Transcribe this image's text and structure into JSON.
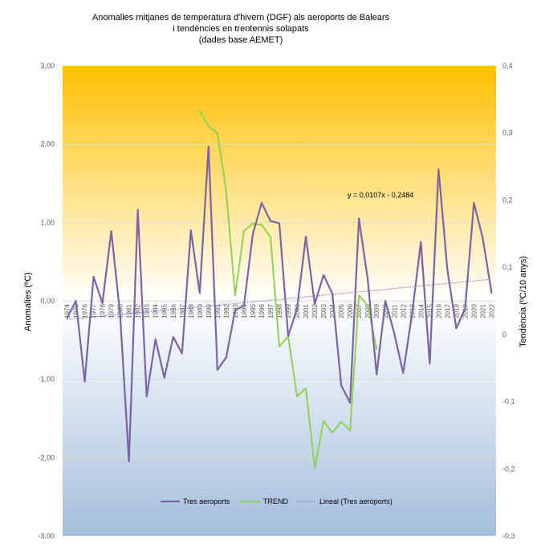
{
  "chart_data": {
    "type": "line",
    "title_lines": [
      "Anomalies mitjanes de temperatura d'hivern (DGF) als aeroports de Balears",
      "i tendències en trentennis solapats",
      "(dades base AEMET)"
    ],
    "ylabel_left": "Anomalies (ºC)",
    "ylabel_right": "Tendència (ºC/10 anys)",
    "y_left_range": [
      -3,
      3
    ],
    "y_left_ticks": [
      "3,00",
      "2,00",
      "1,00",
      "0,00",
      "-1,00",
      "-2,00",
      "-3,00"
    ],
    "y_right_range": [
      -0.3,
      0.4
    ],
    "y_right_ticks": [
      "0,4",
      "0,3",
      "0,2",
      "0,1",
      "0",
      "-0,1",
      "-0,2",
      "-0,3"
    ],
    "categories": [
      "1974",
      "1975",
      "1976",
      "1977",
      "1978",
      "1979",
      "1980",
      "1981",
      "1982",
      "1983",
      "1984",
      "1985",
      "1986",
      "1987",
      "1988",
      "1989",
      "1990",
      "1991",
      "1992",
      "1993",
      "1994",
      "1995",
      "1996",
      "1997",
      "1998",
      "1999",
      "2000",
      "2001",
      "2002",
      "2003",
      "2004",
      "2005",
      "2006",
      "2007",
      "2008",
      "2009",
      "2010",
      "2011",
      "2012",
      "2013",
      "2014",
      "2015",
      "2016",
      "2017",
      "2018",
      "2019",
      "2020",
      "2021",
      "2022"
    ],
    "series": [
      {
        "name": "Tres aeroports",
        "axis": "left",
        "color": "#7b64a6",
        "values": [
          -0.22,
          0.0,
          -1.03,
          0.31,
          -0.03,
          0.89,
          -0.17,
          -2.05,
          1.16,
          -1.22,
          -0.49,
          -0.98,
          -0.46,
          -0.67,
          0.9,
          0.1,
          1.97,
          -0.88,
          -0.72,
          -0.12,
          -0.06,
          0.85,
          1.25,
          1.02,
          0.99,
          -0.45,
          -0.1,
          0.82,
          -0.04,
          0.33,
          0.09,
          -1.08,
          -1.3,
          1.05,
          0.27,
          -0.94,
          0.0,
          -0.42,
          -0.92,
          -0.17,
          0.75,
          -0.8,
          1.68,
          0.4,
          -0.35,
          -0.1,
          1.25,
          0.8,
          0.1
        ]
      },
      {
        "name": "TREND",
        "axis": "right",
        "color": "#92d050",
        "values": [
          null,
          null,
          null,
          null,
          null,
          null,
          null,
          null,
          null,
          null,
          null,
          null,
          null,
          null,
          null,
          0.333,
          0.31,
          0.3,
          0.213,
          0.058,
          0.154,
          0.165,
          0.163,
          0.145,
          -0.018,
          -0.003,
          -0.092,
          -0.08,
          -0.199,
          -0.129,
          -0.146,
          -0.13,
          -0.143,
          0.058,
          0.043,
          -0.022,
          null,
          null,
          null,
          null,
          null,
          null,
          null,
          null,
          null,
          null,
          null,
          null,
          null
        ]
      }
    ],
    "trendline": {
      "name": "Lineal  (Tres aeroports)",
      "equation": "y = 0,0107x - 0,2484",
      "slope": 0.0107,
      "intercept": -0.2484,
      "color": "#7b64a6"
    },
    "legend_position": "bottom",
    "grid": true
  }
}
